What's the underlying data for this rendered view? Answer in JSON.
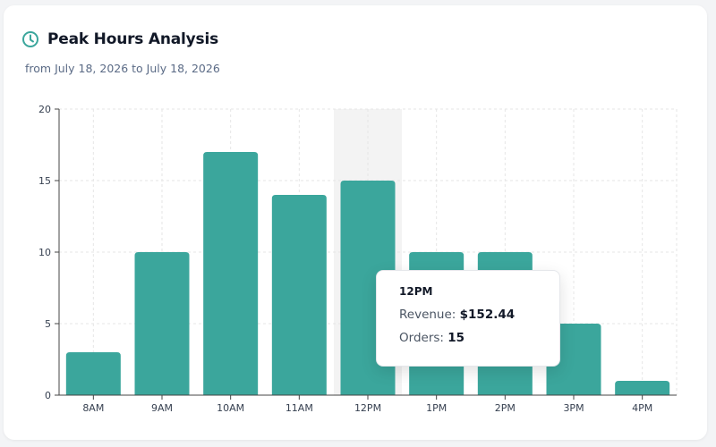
{
  "header": {
    "title": "Peak Hours Analysis",
    "subtitle": "from July 18, 2026 to July 18, 2026",
    "icon": "clock-icon"
  },
  "colors": {
    "accent": "#3ba69c",
    "highlight": "#f3f3f3",
    "grid": "#e6e6e6",
    "axis": "#444444"
  },
  "tooltip": {
    "title": "12PM",
    "revenue_label": "Revenue:",
    "revenue_value": "$152.44",
    "orders_label": "Orders:",
    "orders_value": "15"
  },
  "chart_data": {
    "type": "bar",
    "title": "",
    "xlabel": "",
    "ylabel": "",
    "categories": [
      "8AM",
      "9AM",
      "10AM",
      "11AM",
      "12PM",
      "1PM",
      "2PM",
      "3PM",
      "4PM"
    ],
    "values": [
      3,
      10,
      17,
      14,
      15,
      10,
      10,
      5,
      1
    ],
    "ylim": [
      0,
      20
    ],
    "yticks": [
      0,
      5,
      10,
      15,
      20
    ],
    "grid": true,
    "highlighted_category": "12PM"
  }
}
